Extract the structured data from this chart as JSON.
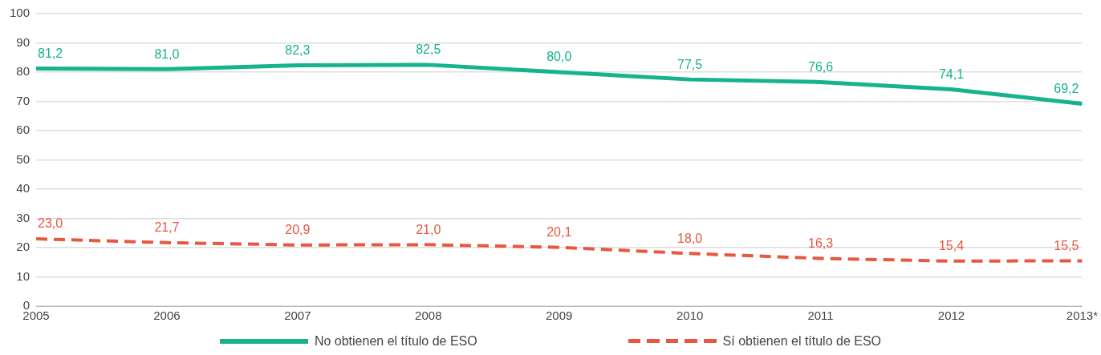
{
  "chart_data": {
    "type": "line",
    "categories": [
      "2005",
      "2006",
      "2007",
      "2008",
      "2009",
      "2010",
      "2011",
      "2012",
      "2013*"
    ],
    "series": [
      {
        "name": "No obtienen el título de ESO",
        "color": "#17b38f",
        "line_style": "solid",
        "values": [
          81.2,
          81.0,
          82.3,
          82.5,
          80.0,
          77.5,
          76.6,
          74.1,
          69.2
        ],
        "value_labels": [
          "81,2",
          "81,0",
          "82,3",
          "82,5",
          "80,0",
          "77,5",
          "76,6",
          "74,1",
          "69,2"
        ]
      },
      {
        "name": "Sí obtienen el título de ESO",
        "color": "#e8573f",
        "line_style": "dashed",
        "values": [
          23.0,
          21.7,
          20.9,
          21.0,
          20.1,
          18.0,
          16.3,
          15.4,
          15.5
        ],
        "value_labels": [
          "23,0",
          "21,7",
          "20,9",
          "21,0",
          "20,1",
          "18,0",
          "16,3",
          "15,4",
          "15,5"
        ]
      }
    ],
    "ylim": [
      0,
      100
    ],
    "yticks": [
      0,
      10,
      20,
      30,
      40,
      50,
      60,
      70,
      80,
      90,
      100
    ],
    "grid": "y",
    "legend": "bottom",
    "marker": "none"
  }
}
